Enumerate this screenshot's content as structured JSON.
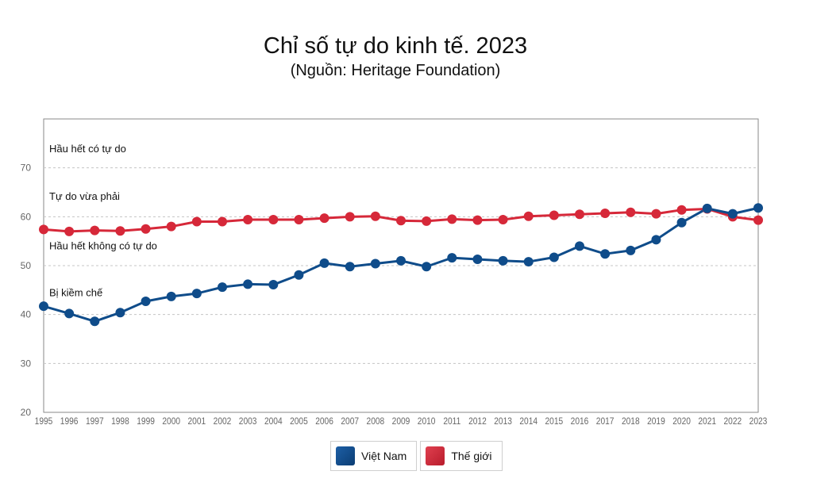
{
  "header": {
    "title": "Chỉ số tự do kinh tế. 2023",
    "subtitle": "(Nguồn: Heritage Foundation)"
  },
  "chart_data": {
    "type": "line",
    "title": "Chỉ số tự do kinh tế. 2023",
    "subtitle": "(Nguồn: Heritage Foundation)",
    "x": [
      "1995",
      "1996",
      "1997",
      "1998",
      "1999",
      "2000",
      "2001",
      "2002",
      "2003",
      "2004",
      "2005",
      "2006",
      "2007",
      "2008",
      "2009",
      "2010",
      "2011",
      "2012",
      "2013",
      "2014",
      "2015",
      "2016",
      "2017",
      "2018",
      "2019",
      "2020",
      "2021",
      "2022",
      "2023"
    ],
    "ylim": [
      20,
      80
    ],
    "yticks": [
      20,
      30,
      40,
      50,
      60,
      70
    ],
    "grid": true,
    "series": [
      {
        "name": "Việt Nam",
        "color": "#0f4c8a",
        "values": [
          41.7,
          40.2,
          38.6,
          40.4,
          42.7,
          43.7,
          44.3,
          45.6,
          46.2,
          46.1,
          48.1,
          50.5,
          49.8,
          50.4,
          51.0,
          49.8,
          51.6,
          51.3,
          51.0,
          50.8,
          51.7,
          54.0,
          52.4,
          53.1,
          55.3,
          58.8,
          61.7,
          60.6,
          61.8
        ]
      },
      {
        "name": "Thế giới",
        "color": "#d62839",
        "values": [
          57.4,
          57.0,
          57.2,
          57.1,
          57.5,
          58.0,
          59.0,
          59.0,
          59.4,
          59.4,
          59.4,
          59.7,
          60.0,
          60.1,
          59.2,
          59.1,
          59.5,
          59.3,
          59.4,
          60.1,
          60.3,
          60.5,
          60.7,
          60.9,
          60.6,
          61.4,
          61.6,
          60.0,
          59.3
        ]
      }
    ],
    "annotations": [
      {
        "text": "Hầu hết có tự do",
        "y": 74
      },
      {
        "text": "Tự do vừa phải",
        "y": 64.3
      },
      {
        "text": "Hầu hết không có tự do",
        "y": 54.1
      },
      {
        "text": "Bị kiềm chế",
        "y": 44.6
      }
    ],
    "legend": {
      "placement": "bottom-center",
      "items": [
        "Việt Nam",
        "Thế giới"
      ]
    }
  }
}
